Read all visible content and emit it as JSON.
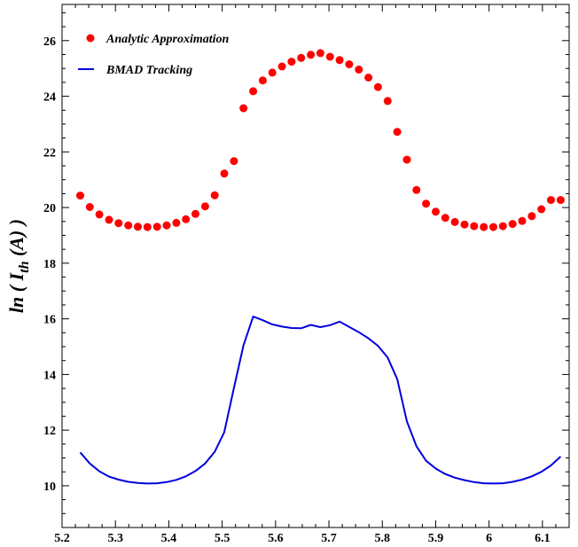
{
  "chart_data": {
    "type": "line",
    "title": "",
    "xlabel": "",
    "ylabel": "ln ( I_th (A) )",
    "ylabel_parts": {
      "main": "ln ( I",
      "sub": "th",
      "tail": " (A) )"
    },
    "xlim": [
      5.2,
      6.15
    ],
    "ylim": [
      8.5,
      27.3
    ],
    "x_ticks": [
      5.2,
      5.3,
      5.4,
      5.5,
      5.6,
      5.7,
      5.8,
      5.9,
      6.0,
      6.1
    ],
    "x_tick_labels": [
      "5.2",
      "5.3",
      "5.4",
      "5.5",
      "5.6",
      "5.7",
      "5.8",
      "5.9",
      "6",
      "6.1"
    ],
    "y_ticks": [
      10,
      12,
      14,
      16,
      18,
      20,
      22,
      24,
      26
    ],
    "y_tick_labels": [
      "10",
      "12",
      "14",
      "16",
      "18",
      "20",
      "22",
      "24",
      "26"
    ],
    "grid": false,
    "legend_position": "top-left",
    "series": [
      {
        "name": "Analytic Approximation",
        "style": "markers",
        "color": "#ff0000",
        "x": [
          5.234,
          5.252,
          5.27,
          5.288,
          5.306,
          5.324,
          5.342,
          5.36,
          5.378,
          5.396,
          5.414,
          5.432,
          5.45,
          5.468,
          5.486,
          5.504,
          5.522,
          5.54,
          5.558,
          5.576,
          5.594,
          5.612,
          5.63,
          5.648,
          5.666,
          5.684,
          5.702,
          5.72,
          5.738,
          5.756,
          5.774,
          5.792,
          5.81,
          5.828,
          5.846,
          5.864,
          5.882,
          5.9,
          5.918,
          5.936,
          5.954,
          5.972,
          5.99,
          6.008,
          6.026,
          6.044,
          6.062,
          6.08,
          6.098,
          6.116,
          6.134
        ],
        "y": [
          20.43,
          20.02,
          19.75,
          19.56,
          19.44,
          19.36,
          19.31,
          19.3,
          19.31,
          19.36,
          19.45,
          19.58,
          19.77,
          20.04,
          20.44,
          21.22,
          21.67,
          23.57,
          24.18,
          24.57,
          24.85,
          25.07,
          25.24,
          25.38,
          25.49,
          25.55,
          25.42,
          25.3,
          25.15,
          24.96,
          24.67,
          24.33,
          23.83,
          22.72,
          21.72,
          20.63,
          20.14,
          19.85,
          19.63,
          19.48,
          19.39,
          19.33,
          19.3,
          19.3,
          19.33,
          19.41,
          19.52,
          19.69,
          19.94,
          20.27,
          20.27
        ]
      },
      {
        "name": "BMAD Tracking",
        "style": "line",
        "color": "#0000dd",
        "x": [
          5.234,
          5.252,
          5.27,
          5.288,
          5.306,
          5.324,
          5.342,
          5.36,
          5.378,
          5.396,
          5.414,
          5.432,
          5.45,
          5.468,
          5.486,
          5.504,
          5.522,
          5.54,
          5.558,
          5.576,
          5.594,
          5.612,
          5.63,
          5.648,
          5.666,
          5.684,
          5.702,
          5.72,
          5.738,
          5.756,
          5.774,
          5.792,
          5.81,
          5.828,
          5.846,
          5.864,
          5.882,
          5.9,
          5.918,
          5.936,
          5.954,
          5.972,
          5.99,
          6.008,
          6.026,
          6.044,
          6.062,
          6.08,
          6.098,
          6.116,
          6.134
        ],
        "y": [
          11.2,
          10.8,
          10.52,
          10.33,
          10.22,
          10.14,
          10.1,
          10.08,
          10.09,
          10.13,
          10.21,
          10.34,
          10.53,
          10.8,
          11.22,
          11.93,
          13.52,
          15.05,
          16.08,
          15.95,
          15.8,
          15.72,
          15.67,
          15.66,
          15.78,
          15.7,
          15.77,
          15.9,
          15.71,
          15.52,
          15.3,
          15.03,
          14.61,
          13.83,
          12.31,
          11.42,
          10.9,
          10.62,
          10.42,
          10.29,
          10.2,
          10.13,
          10.09,
          10.08,
          10.09,
          10.14,
          10.22,
          10.34,
          10.5,
          10.73,
          11.05
        ]
      }
    ]
  }
}
